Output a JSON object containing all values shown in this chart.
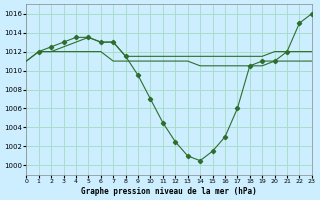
{
  "title": "Graphe pression niveau de la mer (hPa)",
  "bg_color": "#cceeff",
  "grid_color": "#aaddcc",
  "line_color": "#2d6e2d",
  "xlim": [
    0,
    23
  ],
  "ylim": [
    999,
    1017
  ],
  "yticks": [
    1000,
    1002,
    1004,
    1006,
    1008,
    1010,
    1012,
    1014,
    1016
  ],
  "xticks": [
    0,
    1,
    2,
    3,
    4,
    5,
    6,
    7,
    8,
    9,
    10,
    11,
    12,
    13,
    14,
    15,
    16,
    17,
    18,
    19,
    20,
    21,
    22,
    23
  ],
  "line1_x": [
    0,
    1,
    2,
    3,
    4,
    5,
    6,
    7,
    8,
    9,
    10,
    11,
    12,
    13,
    14,
    15,
    16,
    17,
    18,
    19,
    20,
    21,
    22,
    23
  ],
  "line1_y": [
    1011,
    1012,
    1012,
    1012.5,
    1013,
    1013.5,
    1013,
    1013,
    1011.5,
    1011.5,
    1011.5,
    1011.5,
    1011.5,
    1011.5,
    1011.5,
    1011.5,
    1011.5,
    1011.5,
    1011.5,
    1011.5,
    1012,
    1012,
    1012,
    1012
  ],
  "line2_x": [
    1,
    2,
    3,
    4,
    5,
    6,
    7,
    8,
    9,
    10,
    11,
    12,
    13,
    14,
    15,
    16,
    17,
    18,
    19,
    20,
    21,
    22,
    23
  ],
  "line2_y": [
    1012,
    1012.5,
    1013,
    1013.5,
    1013.5,
    1013,
    1013,
    1011.5,
    1009.5,
    1007,
    1004.5,
    1002.5,
    1001,
    1000.5,
    1001.5,
    1003,
    1006,
    1010.5,
    1011,
    1011,
    1012,
    1015,
    1016
  ],
  "line3_x": [
    0,
    1,
    2,
    3,
    4,
    5,
    6,
    7,
    8,
    9,
    10,
    11,
    12,
    13,
    14,
    15,
    16,
    17,
    18,
    19,
    20,
    21,
    22,
    23
  ],
  "line3_y": [
    1011,
    1012,
    1012,
    1012,
    1012,
    1012,
    1012,
    1011,
    1011,
    1011,
    1011,
    1011,
    1011,
    1011,
    1010.5,
    1010.5,
    1010.5,
    1010.5,
    1010.5,
    1010.5,
    1011,
    1011,
    1011,
    1011
  ]
}
